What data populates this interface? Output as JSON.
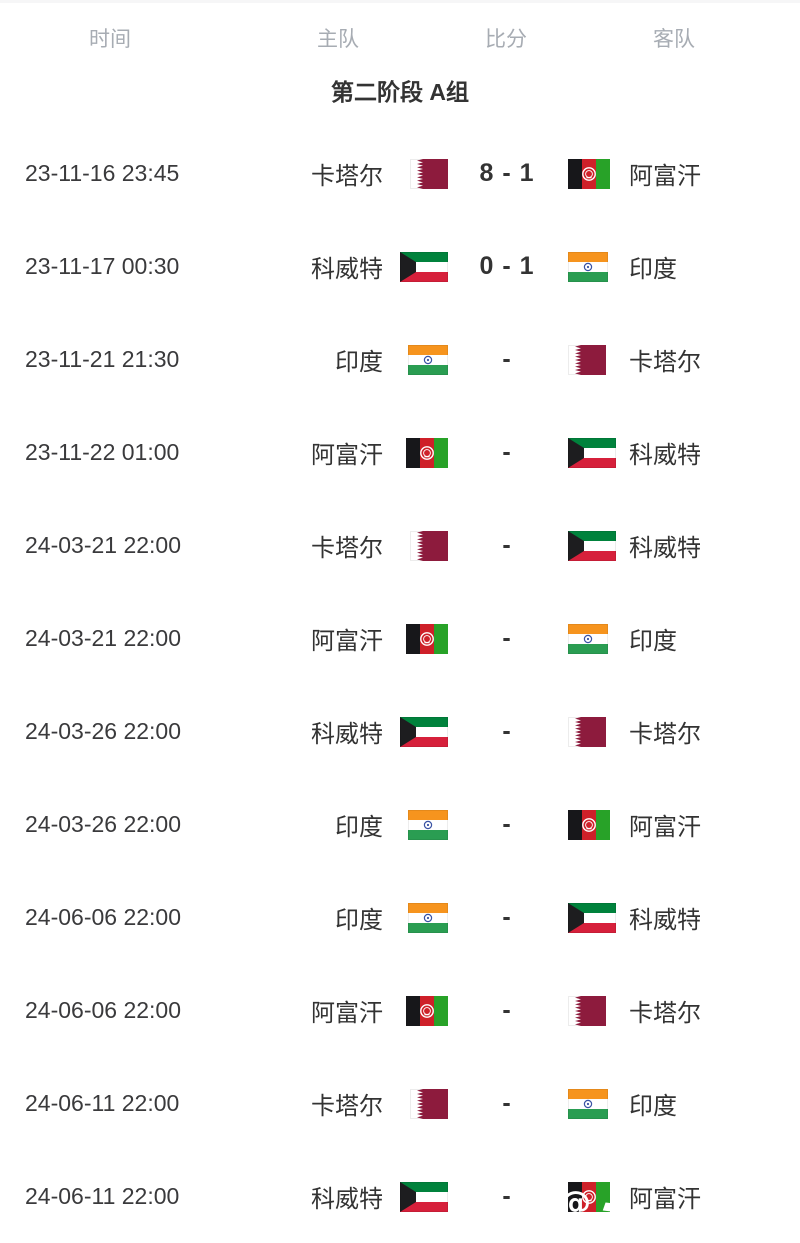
{
  "header": {
    "time": "时间",
    "home": "主队",
    "score": "比分",
    "away": "客队"
  },
  "group_title": "第二阶段 A组",
  "watermark": "@",
  "colors": {
    "text": "#333333",
    "header_text": "#a7acb3",
    "qatar_maroon": "#8d1b3d",
    "kuwait_green": "#00823c",
    "kuwait_red": "#d6203b",
    "kuwait_black": "#1d1d1f",
    "india_saffron": "#f6941e",
    "india_green": "#2a9d52",
    "india_navy": "#3a53a4",
    "afghan_black": "#17171a",
    "afghan_red": "#ce2029",
    "afghan_green": "#28a228"
  },
  "matches": [
    {
      "time": "23-11-16 23:45",
      "home": {
        "name": "卡塔尔",
        "flag": "qatar"
      },
      "score": "8 - 1",
      "away": {
        "name": "阿富汗",
        "flag": "afghanistan"
      }
    },
    {
      "time": "23-11-17 00:30",
      "home": {
        "name": "科威特",
        "flag": "kuwait"
      },
      "score": "0 - 1",
      "away": {
        "name": "印度",
        "flag": "india"
      }
    },
    {
      "time": "23-11-21 21:30",
      "home": {
        "name": "印度",
        "flag": "india"
      },
      "score": "-",
      "away": {
        "name": "卡塔尔",
        "flag": "qatar"
      }
    },
    {
      "time": "23-11-22 01:00",
      "home": {
        "name": "阿富汗",
        "flag": "afghanistan"
      },
      "score": "-",
      "away": {
        "name": "科威特",
        "flag": "kuwait"
      }
    },
    {
      "time": "24-03-21 22:00",
      "home": {
        "name": "卡塔尔",
        "flag": "qatar"
      },
      "score": "-",
      "away": {
        "name": "科威特",
        "flag": "kuwait"
      }
    },
    {
      "time": "24-03-21 22:00",
      "home": {
        "name": "阿富汗",
        "flag": "afghanistan"
      },
      "score": "-",
      "away": {
        "name": "印度",
        "flag": "india"
      }
    },
    {
      "time": "24-03-26 22:00",
      "home": {
        "name": "科威特",
        "flag": "kuwait"
      },
      "score": "-",
      "away": {
        "name": "卡塔尔",
        "flag": "qatar"
      }
    },
    {
      "time": "24-03-26 22:00",
      "home": {
        "name": "印度",
        "flag": "india"
      },
      "score": "-",
      "away": {
        "name": "阿富汗",
        "flag": "afghanistan"
      }
    },
    {
      "time": "24-06-06 22:00",
      "home": {
        "name": "印度",
        "flag": "india"
      },
      "score": "-",
      "away": {
        "name": "科威特",
        "flag": "kuwait"
      }
    },
    {
      "time": "24-06-06 22:00",
      "home": {
        "name": "阿富汗",
        "flag": "afghanistan"
      },
      "score": "-",
      "away": {
        "name": "卡塔尔",
        "flag": "qatar"
      }
    },
    {
      "time": "24-06-11 22:00",
      "home": {
        "name": "卡塔尔",
        "flag": "qatar"
      },
      "score": "-",
      "away": {
        "name": "印度",
        "flag": "india"
      }
    },
    {
      "time": "24-06-11 22:00",
      "home": {
        "name": "科威特",
        "flag": "kuwait"
      },
      "score": "-",
      "away": {
        "name": "阿富汗",
        "flag": "afghanistan"
      },
      "watermarked": true
    }
  ]
}
